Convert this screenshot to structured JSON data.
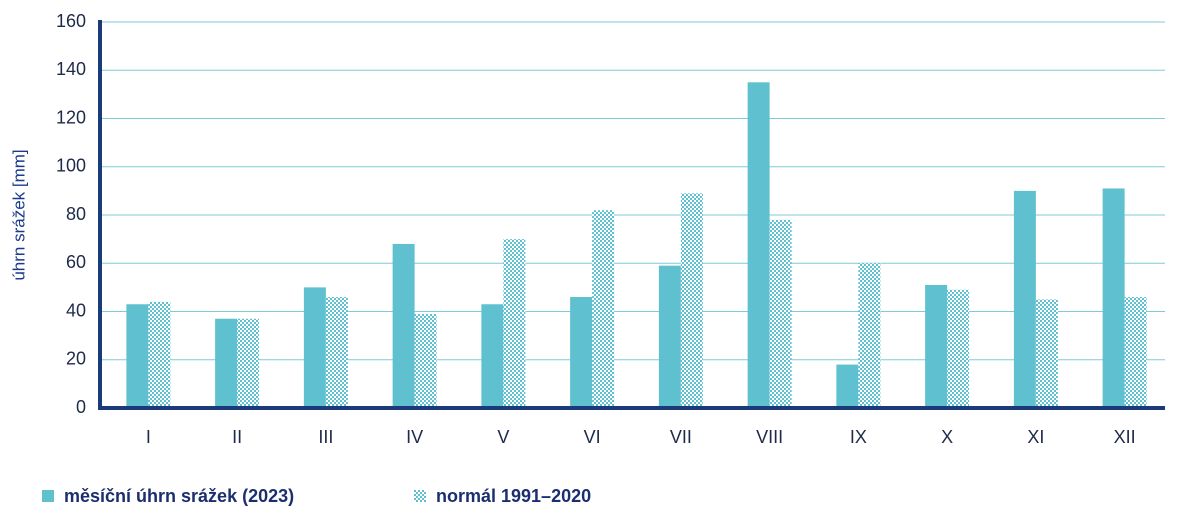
{
  "chart_data": {
    "type": "bar",
    "y_label": "úhrn srážek [mm]",
    "categories": [
      "I",
      "II",
      "III",
      "IV",
      "V",
      "VI",
      "VII",
      "VIII",
      "IX",
      "X",
      "XI",
      "XII"
    ],
    "series": [
      {
        "name": "měsíční úhrn srážek (2023)",
        "color": "#5fc1cf",
        "pattern": "solid",
        "values": [
          43,
          37,
          50,
          68,
          43,
          46,
          59,
          135,
          18,
          51,
          90,
          91
        ]
      },
      {
        "name": "normál 1991–2020",
        "color": "#5fc1cf",
        "pattern": "checker",
        "values": [
          44,
          37,
          46,
          39,
          70,
          82,
          89,
          78,
          60,
          49,
          45,
          46
        ]
      }
    ],
    "ylim": [
      0,
      160
    ],
    "yticks": [
      0,
      20,
      40,
      60,
      80,
      100,
      120,
      140,
      160
    ],
    "grid": true
  }
}
